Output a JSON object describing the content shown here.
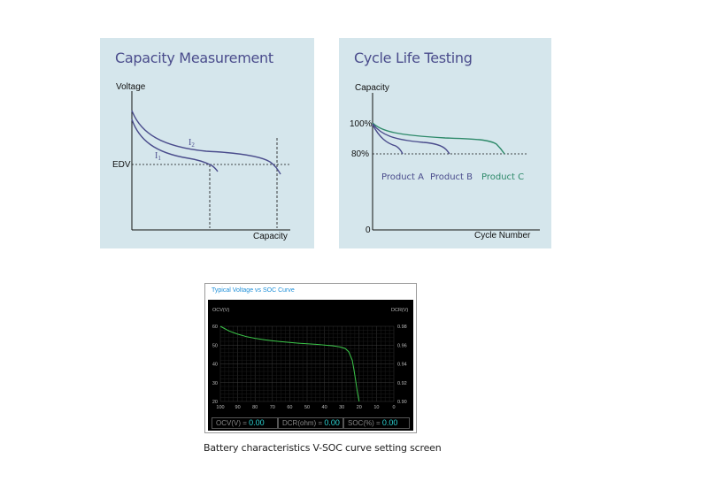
{
  "panels": [
    {
      "title": "Capacity Measurement",
      "y_label": "Voltage",
      "x_label": "Capacity",
      "edv_label": "EDV",
      "curve_labels": [
        "I",
        "I"
      ],
      "curve_subscripts": [
        "2",
        "1"
      ]
    },
    {
      "title": "Cycle Life Testing",
      "y_label": "Capacity",
      "x_label": "Cycle Number",
      "ticks": [
        "100%",
        "80%",
        "0"
      ],
      "products": [
        {
          "name": "Product A",
          "color": "#4a4c8c"
        },
        {
          "name": "Product B",
          "color": "#4a4c8c"
        },
        {
          "name": "Product C",
          "color": "#2e8a6a"
        }
      ]
    }
  ],
  "screen": {
    "title": "Typical Voltage vs SOC Curve",
    "left_axis_label": "OCV(V)",
    "right_axis_label": "DCR(V)",
    "readouts": [
      {
        "label": "OCV(V) = ",
        "value": "0.00"
      },
      {
        "label": "DCR(ohm) = ",
        "value": "0.00"
      },
      {
        "label": "SOC(%) = ",
        "value": "0.00"
      }
    ]
  },
  "chart_data": {
    "type": "line",
    "title": "Typical Voltage vs SOC Curve",
    "xlabel": "",
    "ylabel": "OCV(V)",
    "y2label": "DCR(V)",
    "xlim": [
      100,
      0
    ],
    "ylim": [
      20,
      60
    ],
    "y2lim": [
      0.9,
      0.98
    ],
    "x_ticks": [
      "100",
      "90",
      "80",
      "70",
      "60",
      "50",
      "40",
      "30",
      "20",
      "10",
      "0"
    ],
    "y_ticks": [
      "60",
      "50",
      "40",
      "30",
      "20"
    ],
    "y2_ticks": [
      "0.98",
      "0.96",
      "0.94",
      "0.92",
      "0.90"
    ],
    "grid": true,
    "line_color": "#3cc84a",
    "series": [
      {
        "x": [
          100,
          95,
          90,
          85,
          80,
          75,
          70,
          65,
          60,
          55,
          50,
          45,
          40,
          35,
          31,
          28,
          26,
          24,
          23,
          22,
          21,
          20
        ],
        "y": [
          60,
          57.5,
          55.8,
          54.5,
          53.6,
          52.9,
          52.3,
          51.8,
          51.4,
          51.0,
          50.7,
          50.4,
          50.0,
          49.6,
          49.0,
          48.2,
          46.5,
          42,
          37,
          31,
          25,
          20
        ]
      }
    ]
  },
  "caption": "Battery characteristics V-SOC curve setting screen"
}
